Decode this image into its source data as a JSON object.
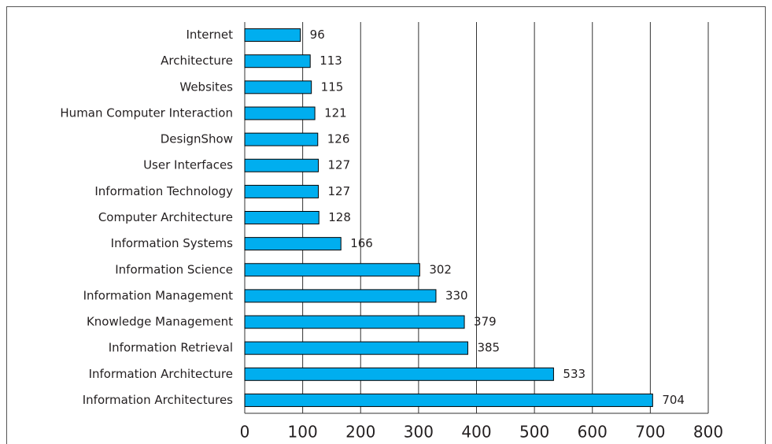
{
  "chart_data": {
    "type": "bar",
    "orientation": "horizontal",
    "categories": [
      "Internet",
      "Architecture",
      "Websites",
      "Human Computer Interaction",
      "DesignShow",
      "User Interfaces",
      "Information Technology",
      "Computer Architecture",
      "Information Systems",
      "Information Science",
      "Information Management",
      "Knowledge Management",
      "Information Retrieval",
      "Information Architecture",
      "Information Architectures"
    ],
    "values": [
      96,
      113,
      115,
      121,
      126,
      127,
      127,
      128,
      166,
      302,
      330,
      379,
      385,
      533,
      704
    ],
    "color": "#00aeef",
    "xlim": [
      0,
      800
    ],
    "xticks": [
      0,
      100,
      200,
      300,
      400,
      500,
      600,
      700,
      800
    ],
    "grid": true
  }
}
